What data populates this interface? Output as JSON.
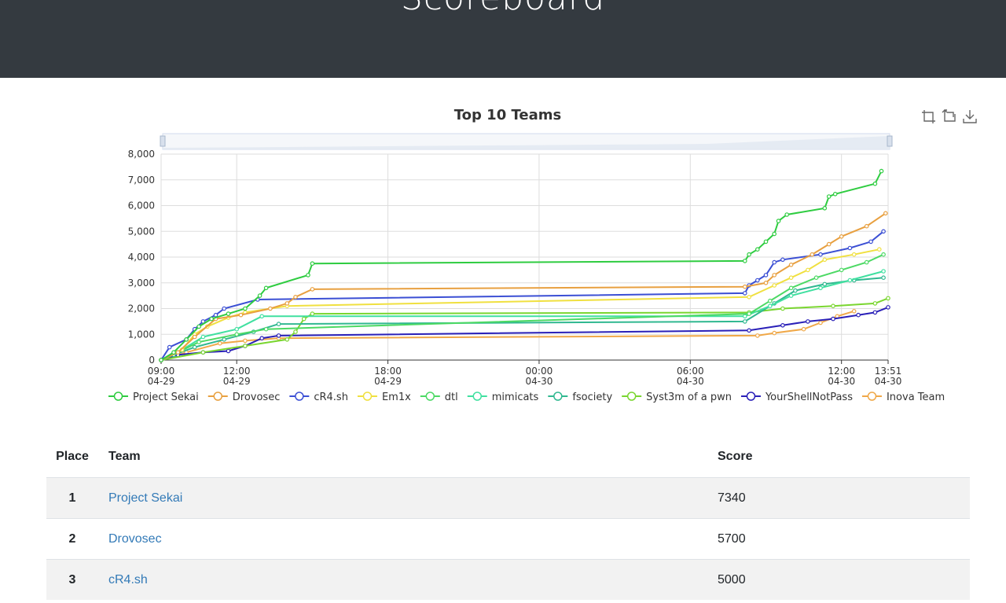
{
  "header": {
    "title": "Scoreboard"
  },
  "chart_data": {
    "type": "line",
    "title": "Top 10 Teams",
    "ylim": [
      0,
      8000
    ],
    "yticks": [
      "0",
      "1,000",
      "2,000",
      "3,000",
      "4,000",
      "5,000",
      "6,000",
      "7,000",
      "8,000"
    ],
    "xlim": [
      "04-29 09:00",
      "04-30 13:51"
    ],
    "xticks": [
      {
        "t": 0,
        "time": "09:00",
        "date": "04-29"
      },
      {
        "t": 180,
        "time": "12:00",
        "date": "04-29"
      },
      {
        "t": 540,
        "time": "18:00",
        "date": "04-29"
      },
      {
        "t": 900,
        "time": "00:00",
        "date": "04-30"
      },
      {
        "t": 1260,
        "time": "06:00",
        "date": "04-30"
      },
      {
        "t": 1620,
        "time": "12:00",
        "date": "04-30"
      },
      {
        "t": 1731,
        "time": "13:51",
        "date": "04-30"
      }
    ],
    "x_unit": "minutes since 04-29 09:00",
    "grid": true,
    "legend_position": "bottom",
    "series": [
      {
        "name": "Project Sekai",
        "color": "#2ecc40",
        "points": [
          [
            0,
            0
          ],
          [
            30,
            300
          ],
          [
            60,
            800
          ],
          [
            90,
            1300
          ],
          [
            120,
            1600
          ],
          [
            160,
            1800
          ],
          [
            200,
            2000
          ],
          [
            235,
            2500
          ],
          [
            250,
            2800
          ],
          [
            350,
            3300
          ],
          [
            360,
            3750
          ],
          [
            1390,
            3850
          ],
          [
            1400,
            4100
          ],
          [
            1420,
            4300
          ],
          [
            1440,
            4600
          ],
          [
            1460,
            4900
          ],
          [
            1470,
            5400
          ],
          [
            1490,
            5650
          ],
          [
            1580,
            5900
          ],
          [
            1590,
            6350
          ],
          [
            1605,
            6450
          ],
          [
            1700,
            6850
          ],
          [
            1715,
            7340
          ]
        ]
      },
      {
        "name": "Drovosec",
        "color": "#e8a040",
        "points": [
          [
            0,
            0
          ],
          [
            40,
            300
          ],
          [
            80,
            900
          ],
          [
            130,
            1600
          ],
          [
            190,
            1750
          ],
          [
            260,
            2000
          ],
          [
            300,
            2200
          ],
          [
            320,
            2450
          ],
          [
            360,
            2750
          ],
          [
            1390,
            2850
          ],
          [
            1440,
            3000
          ],
          [
            1460,
            3300
          ],
          [
            1500,
            3700
          ],
          [
            1550,
            4100
          ],
          [
            1590,
            4500
          ],
          [
            1620,
            4800
          ],
          [
            1680,
            5200
          ],
          [
            1725,
            5700
          ]
        ]
      },
      {
        "name": "cR4.sh",
        "color": "#3b4fd4",
        "points": [
          [
            0,
            0
          ],
          [
            20,
            500
          ],
          [
            60,
            800
          ],
          [
            80,
            1200
          ],
          [
            100,
            1500
          ],
          [
            130,
            1750
          ],
          [
            150,
            2000
          ],
          [
            230,
            2350
          ],
          [
            1390,
            2600
          ],
          [
            1400,
            2900
          ],
          [
            1420,
            3100
          ],
          [
            1440,
            3300
          ],
          [
            1460,
            3800
          ],
          [
            1480,
            3900
          ],
          [
            1570,
            4100
          ],
          [
            1640,
            4350
          ],
          [
            1690,
            4600
          ],
          [
            1720,
            5000
          ]
        ]
      },
      {
        "name": "Em1x",
        "color": "#f0e040",
        "points": [
          [
            0,
            0
          ],
          [
            50,
            400
          ],
          [
            80,
            1000
          ],
          [
            110,
            1300
          ],
          [
            160,
            1650
          ],
          [
            200,
            1850
          ],
          [
            300,
            2100
          ],
          [
            1400,
            2450
          ],
          [
            1460,
            2900
          ],
          [
            1500,
            3200
          ],
          [
            1540,
            3500
          ],
          [
            1580,
            3900
          ],
          [
            1650,
            4100
          ],
          [
            1710,
            4300
          ]
        ]
      },
      {
        "name": "dtl",
        "color": "#4cd964",
        "points": [
          [
            0,
            0
          ],
          [
            40,
            300
          ],
          [
            90,
            700
          ],
          [
            180,
            1000
          ],
          [
            250,
            1200
          ],
          [
            1400,
            1800
          ],
          [
            1450,
            2300
          ],
          [
            1500,
            2800
          ],
          [
            1560,
            3200
          ],
          [
            1620,
            3500
          ],
          [
            1680,
            3800
          ],
          [
            1720,
            4100
          ]
        ]
      },
      {
        "name": "mimicats",
        "color": "#40e0a0",
        "points": [
          [
            0,
            0
          ],
          [
            50,
            400
          ],
          [
            100,
            900
          ],
          [
            180,
            1200
          ],
          [
            240,
            1700
          ],
          [
            1390,
            1700
          ],
          [
            1450,
            2100
          ],
          [
            1500,
            2500
          ],
          [
            1570,
            2800
          ],
          [
            1640,
            3100
          ],
          [
            1720,
            3450
          ]
        ]
      },
      {
        "name": "fsociety",
        "color": "#30b890",
        "points": [
          [
            0,
            0
          ],
          [
            30,
            200
          ],
          [
            80,
            500
          ],
          [
            150,
            800
          ],
          [
            220,
            1100
          ],
          [
            280,
            1400
          ],
          [
            1390,
            1500
          ],
          [
            1460,
            2200
          ],
          [
            1510,
            2700
          ],
          [
            1580,
            2950
          ],
          [
            1650,
            3100
          ],
          [
            1720,
            3200
          ]
        ]
      },
      {
        "name": "Syst3m of a pwn",
        "color": "#7ad630",
        "points": [
          [
            0,
            0
          ],
          [
            100,
            300
          ],
          [
            200,
            550
          ],
          [
            300,
            800
          ],
          [
            320,
            1100
          ],
          [
            340,
            1600
          ],
          [
            360,
            1800
          ],
          [
            1400,
            1850
          ],
          [
            1480,
            2000
          ],
          [
            1600,
            2100
          ],
          [
            1700,
            2200
          ],
          [
            1731,
            2400
          ]
        ]
      },
      {
        "name": "YourShellNotPass",
        "color": "#2a20b8",
        "points": [
          [
            0,
            0
          ],
          [
            40,
            200
          ],
          [
            100,
            300
          ],
          [
            160,
            350
          ],
          [
            200,
            550
          ],
          [
            240,
            850
          ],
          [
            280,
            950
          ],
          [
            1400,
            1150
          ],
          [
            1480,
            1350
          ],
          [
            1540,
            1500
          ],
          [
            1600,
            1600
          ],
          [
            1660,
            1750
          ],
          [
            1700,
            1850
          ],
          [
            1731,
            2050
          ]
        ]
      },
      {
        "name": "Inova Team",
        "color": "#f0a848",
        "points": [
          [
            0,
            0
          ],
          [
            60,
            300
          ],
          [
            140,
            650
          ],
          [
            200,
            750
          ],
          [
            280,
            850
          ],
          [
            1420,
            950
          ],
          [
            1460,
            1050
          ],
          [
            1530,
            1200
          ],
          [
            1570,
            1450
          ],
          [
            1610,
            1700
          ],
          [
            1650,
            1900
          ]
        ]
      }
    ]
  },
  "toolbox": {
    "icons": [
      "zoom-in-icon",
      "zoom-reset-icon",
      "download-icon"
    ]
  },
  "table": {
    "headers": {
      "place": "Place",
      "team": "Team",
      "score": "Score"
    },
    "rows": [
      {
        "place": "1",
        "team": "Project Sekai",
        "score": "7340"
      },
      {
        "place": "2",
        "team": "Drovosec",
        "score": "5700"
      },
      {
        "place": "3",
        "team": "cR4.sh",
        "score": "5000"
      }
    ]
  }
}
